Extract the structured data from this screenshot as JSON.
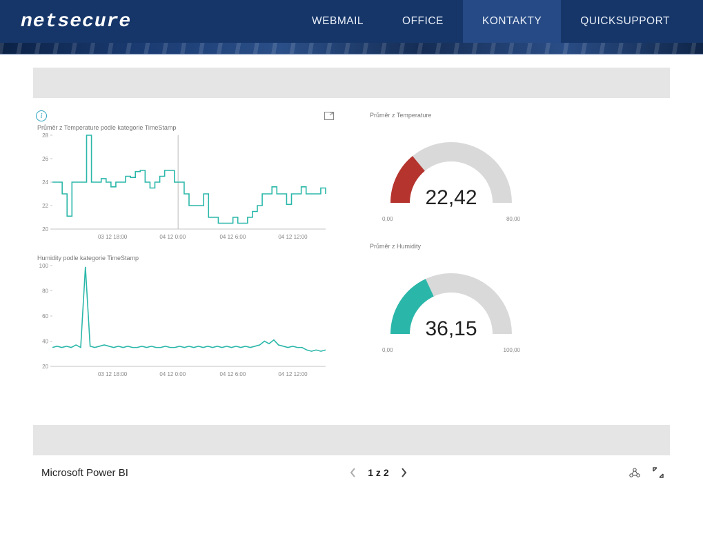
{
  "nav": {
    "logo": "netsecure",
    "items": [
      {
        "label": "WEBMAIL",
        "active": false
      },
      {
        "label": "OFFICE",
        "active": false
      },
      {
        "label": "KONTAKTY",
        "active": true
      },
      {
        "label": "QUICKSUPPORT",
        "active": false
      }
    ]
  },
  "colors": {
    "accent_teal": "#2ab7a9",
    "accent_red": "#b6342e",
    "gauge_track": "#d9d9d9",
    "nav_bg": "#163669",
    "nav_active": "#264a85",
    "grey_bar": "#e5e5e5",
    "axis": "#888888",
    "grid": "#dddddd"
  },
  "charts": {
    "temperature": {
      "type": "line-step",
      "title": "Průměr z Temperature podle kategorie TimeStamp",
      "color": "#2ab7a9",
      "y_min": 20,
      "y_max": 28,
      "y_step": 2,
      "x_labels": [
        "03 12 18:00",
        "04 12 0:00",
        "04 12 6:00",
        "04 12 12:00"
      ],
      "x_ticks": [
        0.22,
        0.44,
        0.66,
        0.88
      ],
      "marker_x": 0.46,
      "values": [
        24.0,
        24.0,
        23.0,
        21.1,
        24.0,
        24.0,
        24.0,
        28.0,
        24.0,
        24.0,
        24.3,
        24.0,
        23.6,
        24.0,
        24.0,
        24.5,
        24.4,
        24.9,
        25.0,
        24.0,
        23.5,
        24.0,
        24.5,
        25.0,
        25.0,
        24.0,
        24.0,
        23.0,
        22.0,
        22.0,
        22.0,
        23.0,
        21.0,
        21.0,
        20.5,
        20.5,
        20.5,
        21.0,
        20.5,
        20.5,
        21.0,
        21.5,
        22.0,
        23.0,
        23.0,
        23.6,
        23.0,
        23.0,
        22.1,
        23.0,
        23.0,
        23.6,
        23.0,
        23.0,
        23.0,
        23.5,
        23.0
      ]
    },
    "humidity": {
      "type": "line",
      "title": "Humidity podle kategorie TimeStamp",
      "color": "#2ab7a9",
      "y_min": 20,
      "y_max": 100,
      "y_step": 20,
      "x_labels": [
        "03 12 18:00",
        "04 12 0:00",
        "04 12 6:00",
        "04 12 12:00"
      ],
      "x_ticks": [
        0.22,
        0.44,
        0.66,
        0.88
      ],
      "values": [
        35,
        36,
        35,
        36,
        35,
        37,
        35,
        99,
        36,
        35,
        36,
        37,
        36,
        35,
        36,
        35,
        36,
        35,
        35,
        36,
        35,
        36,
        35,
        35,
        36,
        35,
        35,
        36,
        35,
        36,
        35,
        36,
        35,
        36,
        35,
        36,
        35,
        36,
        35,
        36,
        35,
        36,
        35,
        36,
        37,
        40,
        38,
        41,
        37,
        36,
        35,
        36,
        35,
        35,
        33,
        32,
        33,
        32,
        33
      ]
    }
  },
  "gauges": {
    "temperature": {
      "title": "Průměr z Temperature",
      "min": 0,
      "max": 80,
      "value": 22.42,
      "display": "22,42",
      "min_label": "0,00",
      "max_label": "80,00",
      "fill_color": "#b6342e"
    },
    "humidity": {
      "title": "Průměr z Humidity",
      "min": 0,
      "max": 100,
      "value": 36.15,
      "display": "36,15",
      "min_label": "0,00",
      "max_label": "100,00",
      "fill_color": "#2ab7a9"
    }
  },
  "footer": {
    "brand": "Microsoft Power BI",
    "page_label": "1 z 2"
  }
}
